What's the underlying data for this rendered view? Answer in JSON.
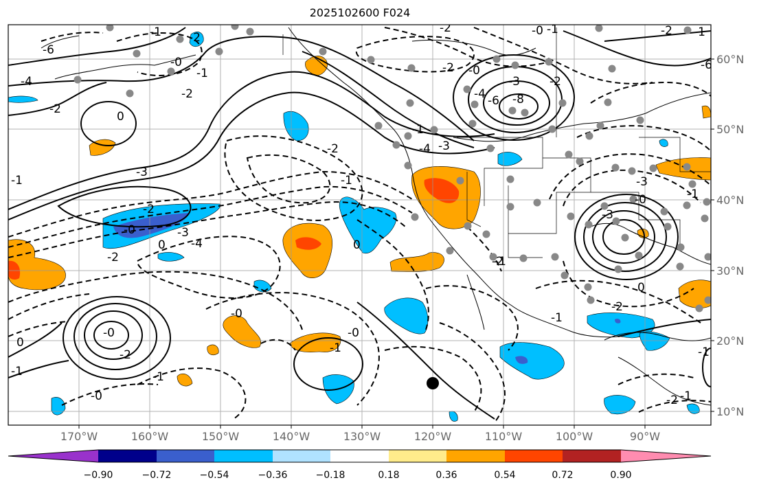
{
  "title": "2025102600 F024",
  "lat_labels": [
    "60°N",
    "50°N",
    "40°N",
    "30°N",
    "20°N",
    "10°N"
  ],
  "lon_labels": [
    "170°W",
    "160°W",
    "150°W",
    "140°W",
    "130°W",
    "120°W",
    "110°W",
    "100°W",
    "90°W"
  ],
  "contour_labels": [
    "-6",
    "-4",
    "-2",
    "-1",
    "-0",
    "-2",
    "-1",
    "-2",
    "0",
    "-3",
    "-2",
    "-1",
    "-0",
    "-2",
    "-3",
    "-4",
    "-0",
    "0",
    "-1",
    "-0",
    "-1",
    "-0",
    "-2",
    "-1",
    "-0",
    "0",
    "-1",
    "-2",
    "-2",
    "-0",
    "-1",
    "-2",
    "-3",
    "-4",
    "-6",
    "-8",
    "-4",
    "-3",
    "-2",
    "-3",
    "-0",
    "-2",
    "-6",
    "-1",
    "-0",
    "0",
    "-1",
    "-3",
    "-1",
    "-2",
    "-1",
    "-2",
    "-1",
    "0",
    "-1",
    "-2",
    "-1"
  ],
  "colorbar": {
    "tick_labels": [
      "−0.90",
      "−0.72",
      "−0.54",
      "−0.36",
      "−0.18",
      "0.18",
      "0.36",
      "0.54",
      "0.72",
      "0.90"
    ],
    "colors": [
      "#9932cc",
      "#00008b",
      "#3a5fcd",
      "#00bfff",
      "#b0e2ff",
      "#ffffff",
      "#ffec8b",
      "#ffa500",
      "#ff4500",
      "#b22222",
      "#ff8cb0"
    ]
  }
}
